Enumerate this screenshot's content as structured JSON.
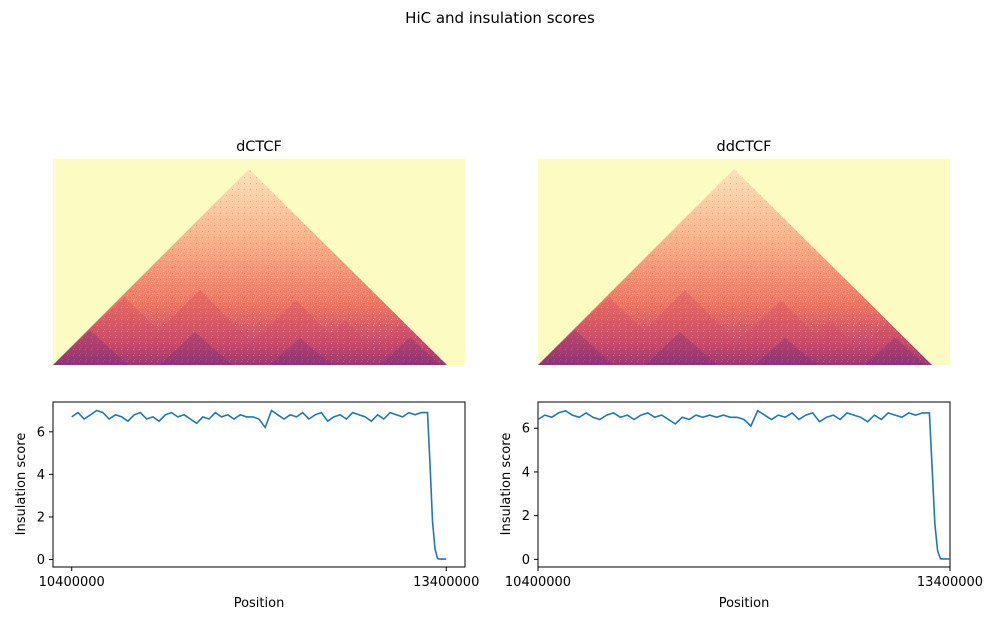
{
  "figure": {
    "title": "HiC and insulation scores"
  },
  "colors": {
    "heatmap_background": "#fbfbc2",
    "heatmap_low": "#fcdcb0",
    "heatmap_mid": "#f17c63",
    "heatmap_high": "#7b2f78",
    "line": "#1f77b4"
  },
  "chart_data": [
    {
      "type": "heatmap",
      "title": "dCTCF",
      "description_shape": "triangular contact map",
      "colormap": "magma-like (yellow background, orange-red to purple toward diagonal)",
      "xlim": [
        10400000,
        13400000
      ]
    },
    {
      "type": "heatmap",
      "title": "ddCTCF",
      "colormap": "magma-like (yellow background, orange-red to purple toward diagonal)",
      "xlim": [
        10400000,
        13400000
      ]
    },
    {
      "type": "line",
      "xlabel": "Position",
      "ylabel": "Insulation score",
      "xlim": [
        10250000,
        13550000
      ],
      "ylim": [
        -0.35,
        7.4
      ],
      "xticks": [
        10400000,
        13400000
      ],
      "xtick_labels": [
        "10400000",
        "13400000"
      ],
      "yticks": [
        0,
        2,
        4,
        6
      ],
      "ytick_labels": [
        "0",
        "2",
        "4",
        "6"
      ],
      "x": [
        10400000,
        10450000,
        10500000,
        10550000,
        10600000,
        10650000,
        10700000,
        10750000,
        10800000,
        10850000,
        10900000,
        10950000,
        11000000,
        11050000,
        11100000,
        11150000,
        11200000,
        11250000,
        11300000,
        11350000,
        11400000,
        11450000,
        11500000,
        11550000,
        11600000,
        11650000,
        11700000,
        11750000,
        11800000,
        11850000,
        11900000,
        11950000,
        12000000,
        12050000,
        12100000,
        12150000,
        12200000,
        12250000,
        12300000,
        12350000,
        12400000,
        12450000,
        12500000,
        12550000,
        12600000,
        12650000,
        12700000,
        12750000,
        12800000,
        12850000,
        12900000,
        12950000,
        13000000,
        13050000,
        13100000,
        13150000,
        13200000,
        13250000,
        13270000,
        13290000,
        13310000,
        13330000,
        13350000,
        13400000
      ],
      "y": [
        6.7,
        6.9,
        6.6,
        6.8,
        7.0,
        6.9,
        6.6,
        6.8,
        6.7,
        6.5,
        6.8,
        6.9,
        6.6,
        6.7,
        6.5,
        6.8,
        6.9,
        6.7,
        6.8,
        6.6,
        6.4,
        6.7,
        6.6,
        6.9,
        6.7,
        6.8,
        6.6,
        6.8,
        6.7,
        6.7,
        6.6,
        6.2,
        7.0,
        6.8,
        6.6,
        6.8,
        6.7,
        6.9,
        6.6,
        6.8,
        6.9,
        6.5,
        6.7,
        6.8,
        6.6,
        6.9,
        6.8,
        6.7,
        6.5,
        6.8,
        6.6,
        6.9,
        6.8,
        6.7,
        6.9,
        6.8,
        6.9,
        6.9,
        4.5,
        1.8,
        0.5,
        0.05,
        0.02,
        0.02
      ]
    },
    {
      "type": "line",
      "xlabel": "Position",
      "ylabel": "Insulation score",
      "xlim": [
        10400000,
        13400000
      ],
      "ylim": [
        -0.35,
        7.2
      ],
      "xticks": [
        10400000,
        13400000
      ],
      "xtick_labels": [
        "10400000",
        "13400000"
      ],
      "yticks": [
        0,
        2,
        4,
        6
      ],
      "ytick_labels": [
        "0",
        "2",
        "4",
        "6"
      ],
      "x": [
        10400000,
        10450000,
        10500000,
        10550000,
        10600000,
        10650000,
        10700000,
        10750000,
        10800000,
        10850000,
        10900000,
        10950000,
        11000000,
        11050000,
        11100000,
        11150000,
        11200000,
        11250000,
        11300000,
        11350000,
        11400000,
        11450000,
        11500000,
        11550000,
        11600000,
        11650000,
        11700000,
        11750000,
        11800000,
        11850000,
        11900000,
        11950000,
        12000000,
        12050000,
        12100000,
        12150000,
        12200000,
        12250000,
        12300000,
        12350000,
        12400000,
        12450000,
        12500000,
        12550000,
        12600000,
        12650000,
        12700000,
        12750000,
        12800000,
        12850000,
        12900000,
        12950000,
        13000000,
        13050000,
        13100000,
        13150000,
        13200000,
        13250000,
        13270000,
        13290000,
        13310000,
        13330000,
        13350000,
        13400000
      ],
      "y": [
        6.4,
        6.6,
        6.5,
        6.7,
        6.8,
        6.6,
        6.5,
        6.7,
        6.5,
        6.4,
        6.6,
        6.7,
        6.5,
        6.6,
        6.4,
        6.6,
        6.7,
        6.5,
        6.6,
        6.4,
        6.2,
        6.5,
        6.4,
        6.6,
        6.5,
        6.6,
        6.5,
        6.6,
        6.5,
        6.5,
        6.4,
        6.1,
        6.8,
        6.6,
        6.4,
        6.6,
        6.5,
        6.7,
        6.4,
        6.6,
        6.7,
        6.3,
        6.5,
        6.6,
        6.4,
        6.7,
        6.6,
        6.5,
        6.3,
        6.6,
        6.4,
        6.7,
        6.6,
        6.5,
        6.7,
        6.6,
        6.7,
        6.7,
        4.2,
        1.6,
        0.4,
        0.03,
        0.02,
        0.02
      ]
    }
  ]
}
